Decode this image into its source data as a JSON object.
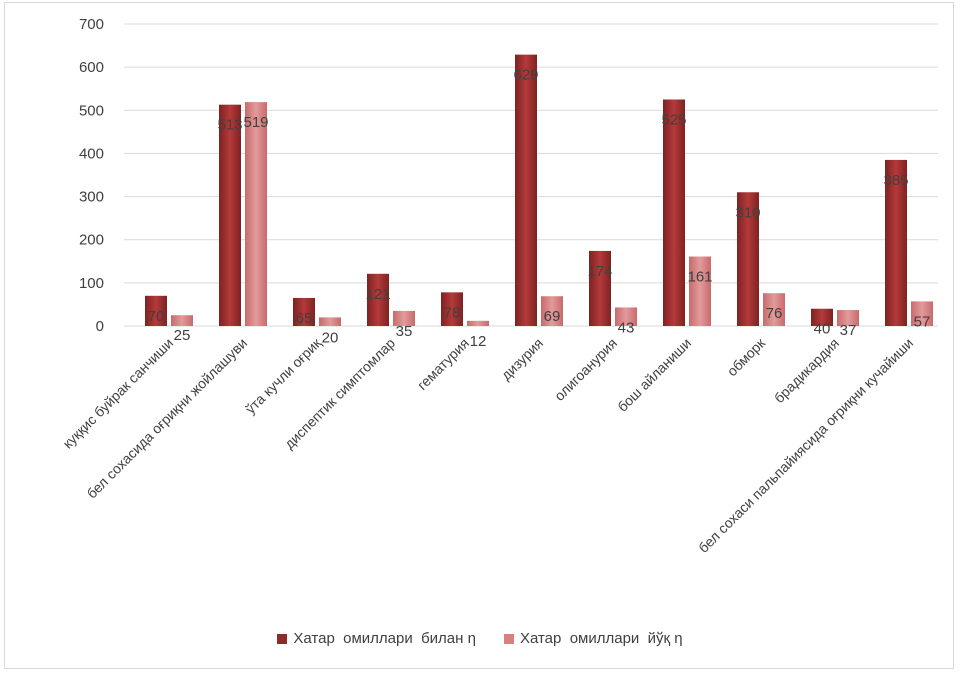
{
  "chart_data": {
    "type": "bar",
    "categories": [
      "куққис буйрак санчиши",
      "бел сохасида оғриқни жойлашуви",
      "ўта кучли оғриқ",
      "диспептик симптомлар",
      "гематурия",
      "дизурия",
      "олигоанурия",
      "бош айланиши",
      "обморк",
      "брадикардия",
      "бел сохаси пальпайиясида оғриқни кучайиши"
    ],
    "series": [
      {
        "name": "Хатар  омиллари  билан η",
        "color": "#a8302f",
        "values": [
          70,
          513,
          65,
          121,
          78,
          629,
          174,
          525,
          310,
          40,
          385
        ]
      },
      {
        "name": "Хатар  омиллари  йўқ η",
        "color": "#d97f80",
        "values": [
          25,
          519,
          20,
          35,
          12,
          69,
          43,
          161,
          76,
          37,
          57
        ]
      }
    ],
    "ylim": [
      0,
      700
    ],
    "yticks": [
      0,
      100,
      200,
      300,
      400,
      500,
      600,
      700
    ],
    "grid": true,
    "legend_position": "bottom",
    "data_labels": true
  }
}
